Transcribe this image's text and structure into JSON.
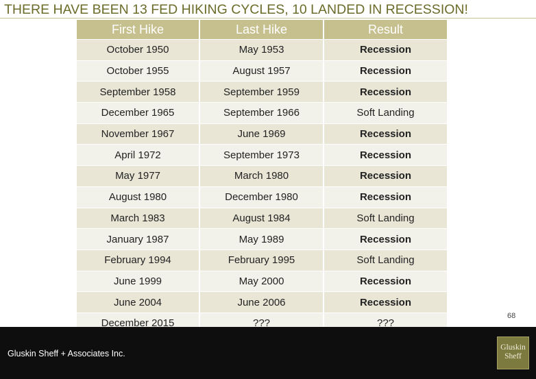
{
  "slide": {
    "title": "THERE HAVE BEEN 13 FED HIKING CYCLES, 10 LANDED IN RECESSION!",
    "page_number": "68"
  },
  "table": {
    "headers": [
      "First Hike",
      "Last Hike",
      "Result"
    ],
    "rows": [
      {
        "first": "October 1950",
        "last": "May 1953",
        "result": "Recession",
        "bold": true
      },
      {
        "first": "October 1955",
        "last": "August 1957",
        "result": "Recession",
        "bold": true
      },
      {
        "first": "September 1958",
        "last": "September 1959",
        "result": "Recession",
        "bold": true
      },
      {
        "first": "December 1965",
        "last": "September 1966",
        "result": "Soft Landing",
        "bold": false
      },
      {
        "first": "November 1967",
        "last": "June 1969",
        "result": "Recession",
        "bold": true
      },
      {
        "first": "April 1972",
        "last": "September 1973",
        "result": "Recession",
        "bold": true
      },
      {
        "first": "May 1977",
        "last": "March 1980",
        "result": "Recession",
        "bold": true
      },
      {
        "first": "August 1980",
        "last": "December 1980",
        "result": "Recession",
        "bold": true
      },
      {
        "first": "March 1983",
        "last": "August 1984",
        "result": "Soft Landing",
        "bold": false
      },
      {
        "first": "January 1987",
        "last": "May 1989",
        "result": "Recession",
        "bold": true
      },
      {
        "first": "February 1994",
        "last": "February 1995",
        "result": "Soft Landing",
        "bold": false
      },
      {
        "first": "June 1999",
        "last": "May 2000",
        "result": "Recession",
        "bold": true
      },
      {
        "first": "June 2004",
        "last": "June 2006",
        "result": "Recession",
        "bold": true
      },
      {
        "first": "December 2015",
        "last": "???",
        "result": "???",
        "bold": false
      }
    ]
  },
  "footer": {
    "company": "Gluskin Sheff + Associates Inc.",
    "logo_line1": "Gluskin",
    "logo_line2": "Sheff"
  },
  "colors": {
    "title": "#6b6b2a",
    "header_bg": "#c6bf8e",
    "row_odd": "#e9e6d6",
    "row_even": "#f3f2ea",
    "footer_bg": "#0e0e0e",
    "logo_bg": "#7d7a3f"
  }
}
